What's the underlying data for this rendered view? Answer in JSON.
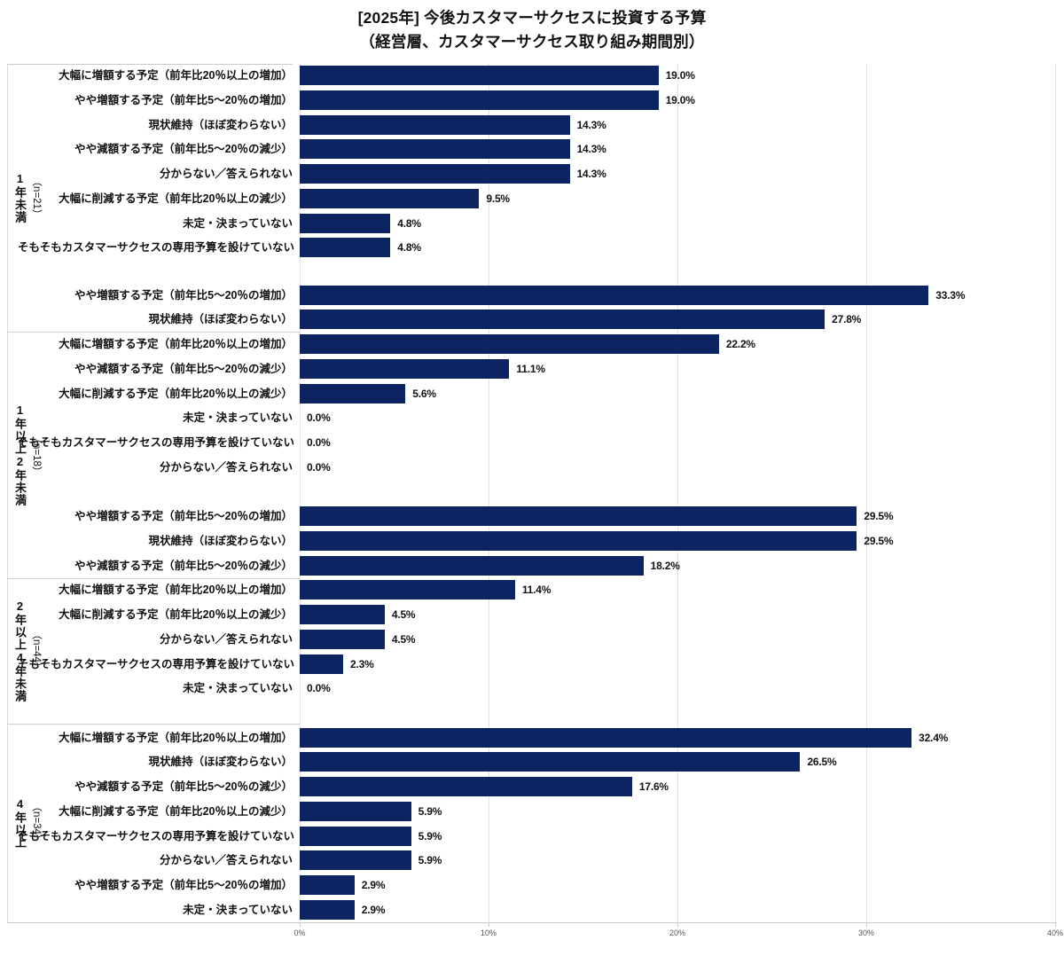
{
  "title": {
    "line1": "[2025年] 今後カスタマーサクセスに投資する予算",
    "line2": "（経営層、カスタマーサクセス取り組み期間別）"
  },
  "chart_data": {
    "type": "bar",
    "orientation": "horizontal",
    "title": "[2025年] 今後カスタマーサクセスに投資する予算（経営層、カスタマーサクセス取り組み期間別）",
    "xlabel": "",
    "ylabel": "",
    "xlim": [
      0,
      40
    ],
    "x_tick_values": [
      0,
      10,
      20,
      30,
      40
    ],
    "x_tick_labels": [
      "0%",
      "10%",
      "20%",
      "30%",
      "40%"
    ],
    "grid": "vertical",
    "bar_color": "#0d2463",
    "groups": [
      {
        "name": "1年未満",
        "n_label": "（n=21）",
        "items": [
          {
            "label": "大幅に増額する予定（前年比20％以上の増加）",
            "value": 19.0,
            "value_label": "19.0%"
          },
          {
            "label": "やや増額する予定（前年比5〜20％の増加）",
            "value": 19.0,
            "value_label": "19.0%"
          },
          {
            "label": "現状維持（ほぼ変わらない）",
            "value": 14.3,
            "value_label": "14.3%"
          },
          {
            "label": "やや減額する予定（前年比5〜20％の減少）",
            "value": 14.3,
            "value_label": "14.3%"
          },
          {
            "label": "分からない／答えられない",
            "value": 14.3,
            "value_label": "14.3%"
          },
          {
            "label": "大幅に削減する予定（前年比20％以上の減少）",
            "value": 9.5,
            "value_label": "9.5%"
          },
          {
            "label": "未定・決まっていない",
            "value": 4.8,
            "value_label": "4.8%"
          },
          {
            "label": "そもそもカスタマーサクセスの専用予算を設けていない",
            "value": 4.8,
            "value_label": "4.8%"
          }
        ]
      },
      {
        "name": "1年以上2年未満",
        "n_label": "（n=18）",
        "items": [
          {
            "label": "やや増額する予定（前年比5〜20％の増加）",
            "value": 33.3,
            "value_label": "33.3%"
          },
          {
            "label": "現状維持（ほぼ変わらない）",
            "value": 27.8,
            "value_label": "27.8%"
          },
          {
            "label": "大幅に増額する予定（前年比20％以上の増加）",
            "value": 22.2,
            "value_label": "22.2%"
          },
          {
            "label": "やや減額する予定（前年比5〜20％の減少）",
            "value": 11.1,
            "value_label": "11.1%"
          },
          {
            "label": "大幅に削減する予定（前年比20％以上の減少）",
            "value": 5.6,
            "value_label": "5.6%"
          },
          {
            "label": "未定・決まっていない",
            "value": 0.0,
            "value_label": "0.0%"
          },
          {
            "label": "そもそもカスタマーサクセスの専用予算を設けていない",
            "value": 0.0,
            "value_label": "0.0%"
          },
          {
            "label": "分からない／答えられない",
            "value": 0.0,
            "value_label": "0.0%"
          }
        ]
      },
      {
        "name": "2年以上4年未満",
        "n_label": "（n=44）",
        "items": [
          {
            "label": "やや増額する予定（前年比5〜20％の増加）",
            "value": 29.5,
            "value_label": "29.5%"
          },
          {
            "label": "現状維持（ほぼ変わらない）",
            "value": 29.5,
            "value_label": "29.5%"
          },
          {
            "label": "やや減額する予定（前年比5〜20％の減少）",
            "value": 18.2,
            "value_label": "18.2%"
          },
          {
            "label": "大幅に増額する予定（前年比20％以上の増加）",
            "value": 11.4,
            "value_label": "11.4%"
          },
          {
            "label": "大幅に削減する予定（前年比20％以上の減少）",
            "value": 4.5,
            "value_label": "4.5%"
          },
          {
            "label": "分からない／答えられない",
            "value": 4.5,
            "value_label": "4.5%"
          },
          {
            "label": "そもそもカスタマーサクセスの専用予算を設けていない",
            "value": 2.3,
            "value_label": "2.3%"
          },
          {
            "label": "未定・決まっていない",
            "value": 0.0,
            "value_label": "0.0%"
          }
        ]
      },
      {
        "name": "4年以上",
        "n_label": "（n=34）",
        "items": [
          {
            "label": "大幅に増額する予定（前年比20％以上の増加）",
            "value": 32.4,
            "value_label": "32.4%"
          },
          {
            "label": "現状維持（ほぼ変わらない）",
            "value": 26.5,
            "value_label": "26.5%"
          },
          {
            "label": "やや減額する予定（前年比5〜20％の減少）",
            "value": 17.6,
            "value_label": "17.6%"
          },
          {
            "label": "大幅に削減する予定（前年比20％以上の減少）",
            "value": 5.9,
            "value_label": "5.9%"
          },
          {
            "label": "そもそもカスタマーサクセスの専用予算を設けていない",
            "value": 5.9,
            "value_label": "5.9%"
          },
          {
            "label": "分からない／答えられない",
            "value": 5.9,
            "value_label": "5.9%"
          },
          {
            "label": "やや増額する予定（前年比5〜20％の増加）",
            "value": 2.9,
            "value_label": "2.9%"
          },
          {
            "label": "未定・決まっていない",
            "value": 2.9,
            "value_label": "2.9%"
          }
        ]
      }
    ]
  }
}
